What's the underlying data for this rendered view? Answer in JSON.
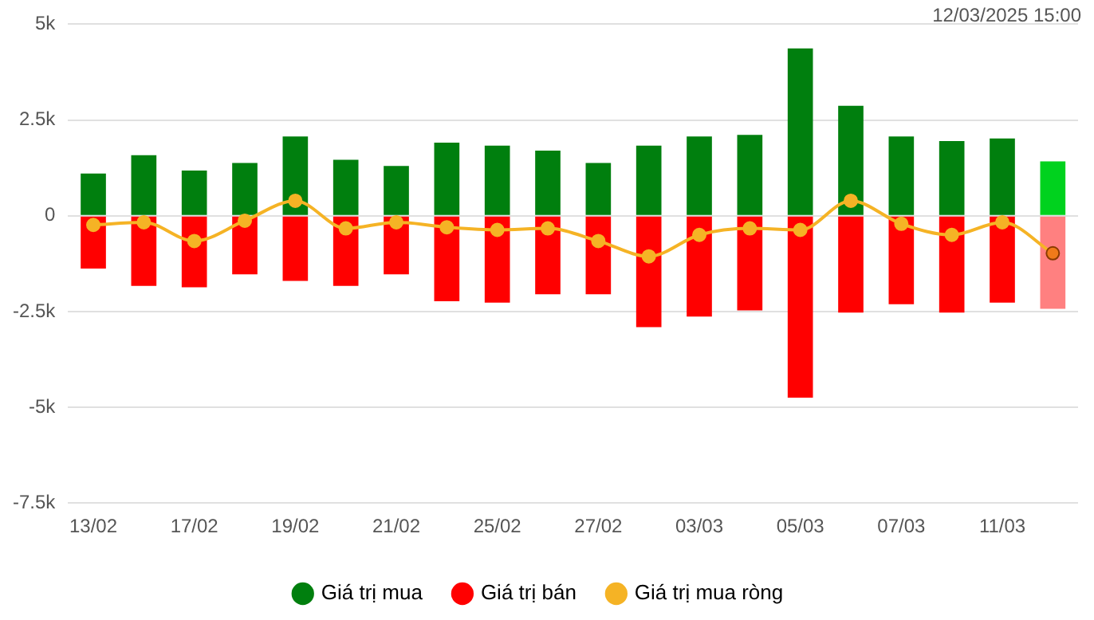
{
  "chart_data": {
    "type": "bar",
    "stacked": true,
    "categories": [
      "13/02",
      null,
      "17/02",
      null,
      "19/02",
      null,
      "21/02",
      null,
      "25/02",
      null,
      "27/02",
      null,
      "03/03",
      null,
      "05/03",
      null,
      "07/03",
      null,
      "11/03",
      null
    ],
    "series": [
      {
        "name": "Giá trị mua",
        "color": "#007f0e",
        "colors": [
          "#007f0e",
          "#007f0e",
          "#007f0e",
          "#007f0e",
          "#007f0e",
          "#007f0e",
          "#007f0e",
          "#007f0e",
          "#007f0e",
          "#007f0e",
          "#007f0e",
          "#007f0e",
          "#007f0e",
          "#007f0e",
          "#007f0e",
          "#007f0e",
          "#007f0e",
          "#007f0e",
          "#007f0e",
          "#00d21e"
        ],
        "values": [
          1100,
          1580,
          1180,
          1380,
          2070,
          1460,
          1300,
          1910,
          1830,
          1700,
          1380,
          1830,
          2070,
          2110,
          4370,
          2870,
          2070,
          1950,
          2020,
          1420
        ]
      },
      {
        "name": "Giá trị bán",
        "color": "#ff0000",
        "colors": [
          "#ff0000",
          "#ff0000",
          "#ff0000",
          "#ff0000",
          "#ff0000",
          "#ff0000",
          "#ff0000",
          "#ff0000",
          "#ff0000",
          "#ff0000",
          "#ff0000",
          "#ff0000",
          "#ff0000",
          "#ff0000",
          "#ff0000",
          "#ff0000",
          "#ff0000",
          "#ff0000",
          "#ff0000",
          "#ff8080"
        ],
        "values": [
          -1380,
          -1830,
          -1870,
          -1530,
          -1700,
          -1830,
          -1530,
          -2230,
          -2270,
          -2050,
          -2050,
          -2910,
          -2630,
          -2470,
          -4750,
          -2530,
          -2310,
          -2530,
          -2270,
          -2430
        ]
      },
      {
        "name": "Giá trị mua ròng",
        "type": "line",
        "color": "#f5b325",
        "colors": [
          "#f5b325",
          "#f5b325",
          "#f5b325",
          "#f5b325",
          "#f5b325",
          "#f5b325",
          "#f5b325",
          "#f5b325",
          "#f5b325",
          "#f5b325",
          "#f5b325",
          "#f5b325",
          "#f5b325",
          "#f5b325",
          "#f5b325",
          "#f5b325",
          "#f5b325",
          "#f5b325",
          "#f5b325",
          "#f07a1a"
        ],
        "values": [
          -240,
          -170,
          -660,
          -130,
          390,
          -330,
          -170,
          -300,
          -370,
          -330,
          -660,
          -1060,
          -500,
          -330,
          -370,
          390,
          -210,
          -500,
          -170,
          -980
        ]
      }
    ],
    "ylim": [
      -7500,
      5000
    ],
    "yticks": [
      {
        "value": -7500,
        "label": "-7.5k"
      },
      {
        "value": -5000,
        "label": "-5k"
      },
      {
        "value": -2500,
        "label": "-2.5k"
      },
      0,
      {
        "value": 2500,
        "label": "2.5k"
      },
      {
        "value": 5000,
        "label": "5k"
      }
    ],
    "grid": "y",
    "legend": "bottom",
    "marker": "circle",
    "line_style": "solid",
    "annotations": [
      "12/03/2025 15:00"
    ]
  }
}
